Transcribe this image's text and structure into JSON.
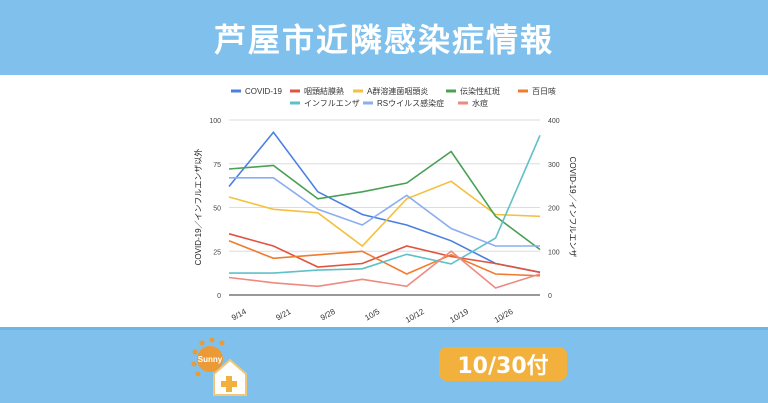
{
  "header": {
    "title": "芦屋市近隣感染症情報"
  },
  "footer": {
    "date_badge": "10/30付",
    "logo_text": "Sunny"
  },
  "chart_data": {
    "type": "line",
    "title": "",
    "categories": [
      "9/14",
      "9/21",
      "9/28",
      "10/5",
      "10/12",
      "10/19",
      "10/26",
      ""
    ],
    "ylabel_left": "COVID-19／インフルエンザ以外",
    "ylabel_right": "COVID-19／インフルエンザ",
    "ylim_left": [
      0,
      100
    ],
    "ylim_right": [
      0,
      400
    ],
    "yticks_left": [
      0,
      25,
      50,
      75,
      100
    ],
    "yticks_right": [
      0,
      100,
      200,
      300,
      400
    ],
    "grid": true,
    "legend": "top",
    "series": [
      {
        "name": "COVID-19",
        "color": "#4a7fe0",
        "axis": "left",
        "values": [
          62,
          93,
          59,
          46,
          40,
          31,
          18,
          13
        ]
      },
      {
        "name": "咽頭結膜熱",
        "color": "#e0533f",
        "axis": "left",
        "values": [
          35,
          28,
          16,
          18,
          28,
          22,
          18,
          13
        ]
      },
      {
        "name": "A群溶連菌咽頭炎",
        "color": "#f4c040",
        "axis": "left",
        "values": [
          56,
          49,
          47,
          28,
          55,
          65,
          46,
          45
        ]
      },
      {
        "name": "伝染性紅斑",
        "color": "#4aa055",
        "axis": "left",
        "values": [
          72,
          74,
          55,
          59,
          64,
          82,
          45,
          26
        ]
      },
      {
        "name": "百日咳",
        "color": "#f27a2c",
        "axis": "left",
        "values": [
          31,
          21,
          23,
          25,
          12,
          23,
          12,
          11
        ]
      },
      {
        "name": "インフルエンザ",
        "color": "#5ec0c8",
        "axis": "right",
        "values": [
          50,
          50,
          57,
          60,
          93,
          71,
          130,
          365
        ]
      },
      {
        "name": "RSウイルス感染症",
        "color": "#8aaef0",
        "axis": "right_none",
        "values": [
          67,
          67,
          49,
          40,
          57,
          38,
          28,
          28
        ]
      },
      {
        "name": "水痘",
        "color": "#ee8a80",
        "axis": "left",
        "values": [
          10,
          7,
          5,
          9,
          5,
          25,
          4,
          12
        ]
      }
    ]
  }
}
